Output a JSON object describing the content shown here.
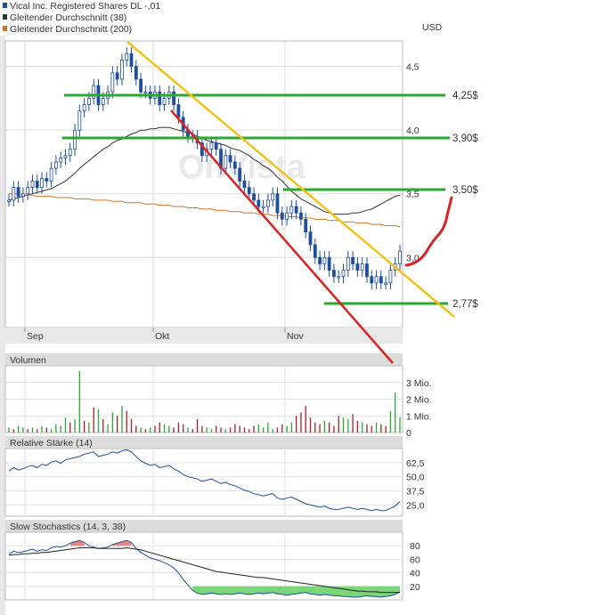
{
  "legend": [
    {
      "label": "Vical Inc. Registered Shares DL -,01",
      "color": "#1f4e9c"
    },
    {
      "label": "Gleitender Durchschnitt (38)",
      "color": "#333333"
    },
    {
      "label": "Gleitender Durchschnitt (200)",
      "color": "#d0762b"
    }
  ],
  "currency": "USD",
  "watermark": "OnVista",
  "annotations": {
    "levels": [
      {
        "label": "4,25$",
        "value": 4.25
      },
      {
        "label": "3,90$",
        "value": 3.9
      },
      {
        "label": "3,50$",
        "value": 3.5
      },
      {
        "label": "2,77$",
        "value": 2.77
      }
    ]
  },
  "panels": {
    "volume": "Volumen",
    "rsi": "Relative Stärke (14)",
    "stoch": "Slow Stochastics (14, 3, 38)"
  },
  "colors": {
    "candle": "#1f4e9c",
    "ma38": "#333333",
    "ma200": "#d0762b",
    "level_line": "#2aa832",
    "trend_top": "#f2c21b",
    "trend_bottom": "#dd2222",
    "vol_up": "#2aa832",
    "vol_down": "#aa1f2a",
    "stoch_fill_high": "#e87878",
    "stoch_fill_low": "#6ad26a"
  },
  "chart_data": [
    {
      "type": "candlestick",
      "ylim": [
        2.45,
        4.7
      ],
      "yticks": [
        "4,5",
        "4,0",
        "3,5",
        "3,0"
      ],
      "ytick_values": [
        4.5,
        4.0,
        3.5,
        3.0
      ],
      "xticks": [
        "Sep",
        "Okt",
        "Nov"
      ],
      "close": [
        3.45,
        3.55,
        3.48,
        3.5,
        3.55,
        3.6,
        3.55,
        3.62,
        3.6,
        3.7,
        3.75,
        3.78,
        3.8,
        3.85,
        4.0,
        4.15,
        4.2,
        4.25,
        4.35,
        4.2,
        4.25,
        4.3,
        4.45,
        4.4,
        4.55,
        4.6,
        4.5,
        4.4,
        4.3,
        4.3,
        4.25,
        4.3,
        4.2,
        4.25,
        4.3,
        4.2,
        4.1,
        4.0,
        3.95,
        3.95,
        3.9,
        3.8,
        3.85,
        3.9,
        3.85,
        3.7,
        3.8,
        3.75,
        3.7,
        3.6,
        3.55,
        3.5,
        3.45,
        3.4,
        3.4,
        3.45,
        3.5,
        3.35,
        3.3,
        3.35,
        3.4,
        3.35,
        3.3,
        3.2,
        3.1,
        3.0,
        2.95,
        3.0,
        2.9,
        2.85,
        2.85,
        2.9,
        3.0,
        2.95,
        2.9,
        2.95,
        2.85,
        2.8,
        2.85,
        2.8,
        2.8,
        2.9,
        2.95,
        3.05
      ],
      "ma38": [
        3.45,
        3.46,
        3.47,
        3.48,
        3.49,
        3.5,
        3.51,
        3.52,
        3.53,
        3.54,
        3.56,
        3.58,
        3.6,
        3.63,
        3.66,
        3.7,
        3.73,
        3.76,
        3.79,
        3.82,
        3.85,
        3.87,
        3.9,
        3.92,
        3.93,
        3.95,
        3.97,
        3.98,
        4.0,
        4.0,
        4.01,
        4.01,
        4.02,
        4.02,
        4.02,
        4.01,
        4.0,
        3.99,
        3.98,
        3.97,
        3.95,
        3.94,
        3.92,
        3.91,
        3.9,
        3.89,
        3.88,
        3.86,
        3.85,
        3.84,
        3.82,
        3.8,
        3.77,
        3.75,
        3.72,
        3.7,
        3.67,
        3.63,
        3.6,
        3.56,
        3.52,
        3.49,
        3.46,
        3.44,
        3.42,
        3.4,
        3.38,
        3.36,
        3.35,
        3.34,
        3.34,
        3.34,
        3.34,
        3.35,
        3.35,
        3.36,
        3.37,
        3.38,
        3.4,
        3.42,
        3.44,
        3.46,
        3.48,
        3.49
      ],
      "ma200": [
        3.5,
        3.5,
        3.5,
        3.49,
        3.49,
        3.49,
        3.48,
        3.48,
        3.48,
        3.48,
        3.47,
        3.47,
        3.47,
        3.47,
        3.46,
        3.46,
        3.46,
        3.46,
        3.45,
        3.45,
        3.45,
        3.45,
        3.44,
        3.44,
        3.44,
        3.43,
        3.43,
        3.43,
        3.43,
        3.42,
        3.42,
        3.42,
        3.41,
        3.41,
        3.41,
        3.4,
        3.4,
        3.4,
        3.39,
        3.39,
        3.39,
        3.38,
        3.38,
        3.38,
        3.37,
        3.37,
        3.37,
        3.36,
        3.36,
        3.36,
        3.35,
        3.35,
        3.35,
        3.34,
        3.34,
        3.34,
        3.33,
        3.33,
        3.33,
        3.32,
        3.32,
        3.32,
        3.31,
        3.31,
        3.31,
        3.3,
        3.3,
        3.3,
        3.29,
        3.29,
        3.29,
        3.28,
        3.28,
        3.28,
        3.27,
        3.27,
        3.27,
        3.26,
        3.26,
        3.26,
        3.25,
        3.25,
        3.25,
        3.24
      ]
    },
    {
      "type": "bar",
      "title": "Volumen",
      "yticks": [
        "3 Mio.",
        "2 Mio.",
        "1 Mio.",
        "0"
      ],
      "ytick_values": [
        3,
        2,
        1,
        0
      ],
      "ylim": [
        0,
        4
      ],
      "values": [
        0.3,
        0.2,
        0.4,
        0.3,
        0.2,
        0.3,
        0.2,
        0.4,
        0.3,
        0.2,
        0.5,
        0.4,
        0.9,
        0.6,
        0.8,
        3.7,
        0.7,
        0.6,
        1.5,
        1.4,
        0.8,
        0.5,
        1.2,
        1.0,
        1.6,
        1.3,
        0.8,
        0.4,
        0.3,
        0.2,
        0.3,
        0.4,
        0.6,
        0.5,
        0.4,
        0.3,
        0.6,
        0.5,
        0.3,
        0.2,
        0.8,
        0.4,
        0.3,
        0.2,
        0.4,
        0.3,
        0.2,
        0.3,
        0.5,
        0.4,
        0.3,
        0.2,
        0.4,
        0.5,
        0.3,
        0.6,
        0.2,
        0.3,
        0.5,
        0.4,
        0.6,
        1.0,
        1.2,
        1.6,
        0.9,
        0.6,
        0.5,
        0.7,
        0.6,
        0.4,
        1.0,
        0.9,
        0.8,
        1.1,
        0.7,
        0.6,
        0.5,
        0.4,
        0.6,
        0.5,
        0.4,
        1.3,
        2.4,
        0.9
      ],
      "up": [
        1,
        0,
        1,
        1,
        0,
        1,
        0,
        1,
        0,
        1,
        1,
        1,
        1,
        0,
        1,
        1,
        0,
        1,
        0,
        1,
        0,
        1,
        1,
        0,
        1,
        0,
        0,
        0,
        1,
        0,
        1,
        0,
        0,
        1,
        1,
        0,
        0,
        0,
        1,
        0,
        0,
        0,
        1,
        1,
        0,
        0,
        1,
        0,
        0,
        0,
        0,
        0,
        0,
        1,
        1,
        1,
        1,
        0,
        0,
        1,
        1,
        0,
        0,
        0,
        0,
        0,
        0,
        1,
        0,
        0,
        0,
        1,
        1,
        0,
        0,
        1,
        0,
        0,
        1,
        0,
        0,
        1,
        1,
        1
      ]
    },
    {
      "type": "line",
      "title": "Relative Stärke (14)",
      "yticks": [
        "62,5",
        "50,0",
        "37,5",
        "25,0"
      ],
      "ytick_values": [
        62.5,
        50,
        37.5,
        25
      ],
      "ylim": [
        15,
        75
      ],
      "values": [
        55,
        58,
        56,
        57,
        59,
        60,
        58,
        61,
        60,
        63,
        64,
        62,
        65,
        66,
        67,
        68,
        70,
        71,
        72,
        68,
        69,
        70,
        72,
        71,
        73,
        74,
        72,
        68,
        64,
        62,
        60,
        61,
        58,
        59,
        60,
        57,
        55,
        52,
        50,
        49,
        48,
        46,
        47,
        48,
        46,
        44,
        45,
        43,
        42,
        40,
        38,
        37,
        35,
        34,
        33,
        34,
        35,
        31,
        30,
        31,
        32,
        30,
        28,
        26,
        25,
        24,
        23,
        24,
        22,
        21,
        21,
        22,
        23,
        22,
        21,
        22,
        21,
        20,
        21,
        20,
        20,
        22,
        24,
        28
      ]
    },
    {
      "type": "line",
      "title": "Slow Stochastics (14, 3, 38)",
      "yticks": [
        "80",
        "60",
        "40",
        "20"
      ],
      "ytick_values": [
        80,
        60,
        40,
        20
      ],
      "ylim": [
        0,
        100
      ],
      "k": [
        68,
        72,
        70,
        71,
        73,
        75,
        72,
        74,
        73,
        77,
        79,
        78,
        80,
        84,
        86,
        88,
        85,
        80,
        78,
        76,
        77,
        78,
        82,
        84,
        86,
        88,
        85,
        76,
        70,
        66,
        62,
        60,
        58,
        55,
        52,
        47,
        40,
        30,
        22,
        14,
        10,
        8,
        9,
        10,
        9,
        8,
        9,
        8,
        9,
        10,
        9,
        8,
        9,
        10,
        9,
        10,
        11,
        9,
        8,
        7,
        8,
        9,
        10,
        11,
        9,
        8,
        7,
        8,
        7,
        6,
        6,
        5,
        5,
        4,
        4,
        5,
        6,
        5,
        5,
        4,
        5,
        6,
        8,
        12
      ],
      "d": [
        66,
        67,
        67,
        68,
        68,
        69,
        69,
        70,
        70,
        71,
        72,
        73,
        74,
        75,
        76,
        77,
        77,
        77,
        77,
        76,
        76,
        76,
        76,
        76,
        76,
        77,
        76,
        75,
        74,
        72,
        70,
        68,
        66,
        64,
        62,
        60,
        58,
        56,
        54,
        52,
        50,
        48,
        46,
        44,
        42,
        41,
        40,
        39,
        38,
        37,
        36,
        35,
        34,
        33,
        33,
        32,
        31,
        30,
        29,
        28,
        27,
        26,
        25,
        24,
        23,
        22,
        21,
        20,
        19,
        18,
        17,
        16,
        15,
        14,
        13,
        13,
        12,
        12,
        12,
        11,
        11,
        11,
        11,
        11
      ]
    }
  ]
}
